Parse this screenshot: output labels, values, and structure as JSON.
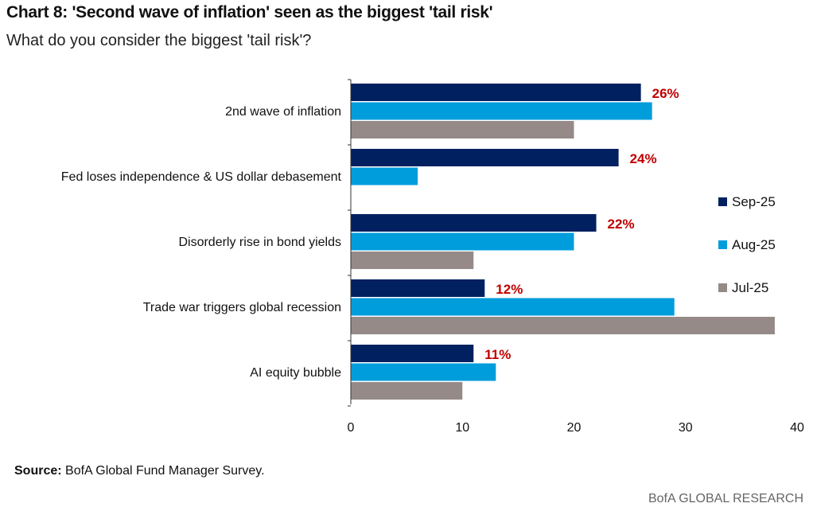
{
  "header": {
    "title": "Chart 8: 'Second wave of inflation' seen as the biggest 'tail risk'",
    "subtitle": "What do you consider the biggest 'tail risk'?"
  },
  "footer": {
    "source_label": "Source:",
    "source_text": "BofA Global Fund Manager Survey.",
    "brand": "BofA GLOBAL RESEARCH"
  },
  "chart_data": {
    "type": "bar",
    "orientation": "horizontal",
    "categories": [
      "2nd wave of inflation",
      "Fed loses independence & US dollar debasement",
      "Disorderly rise in bond yields",
      "Trade war triggers global recession",
      "AI equity bubble"
    ],
    "series": [
      {
        "name": "Sep-25",
        "color": "#002060",
        "values": [
          26,
          24,
          22,
          12,
          11
        ]
      },
      {
        "name": "Aug-25",
        "color": "#009ddc",
        "values": [
          27,
          6,
          20,
          29,
          13
        ]
      },
      {
        "name": "Jul-25",
        "color": "#958a88",
        "values": [
          20,
          null,
          11,
          38,
          10
        ]
      }
    ],
    "data_labels": [
      "26%",
      "24%",
      "22%",
      "12%",
      "11%"
    ],
    "data_label_series": "Sep-25",
    "xlim": [
      0,
      40
    ],
    "xticks": [
      "0",
      "10",
      "20",
      "30",
      "40"
    ],
    "grid": false,
    "legend_position": "right"
  }
}
